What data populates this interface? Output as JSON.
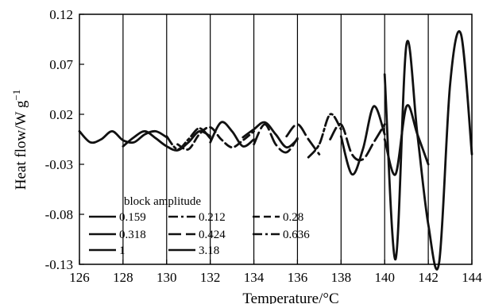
{
  "chart_data": {
    "type": "line",
    "xlabel": "Temperature/°C",
    "ylabel": "Heat flow/W g",
    "ylabel_sup": "−1",
    "xlim": [
      126,
      144
    ],
    "ylim": [
      -0.13,
      0.12
    ],
    "xticks": [
      "126",
      "128",
      "130",
      "132",
      "134",
      "136",
      "138",
      "140",
      "142",
      "144"
    ],
    "yticks": [
      "0.12",
      "0.07",
      "0.02",
      "-0.03",
      "-0.08",
      "-0.13"
    ],
    "vertical_lines": [
      128,
      130,
      132,
      134,
      136,
      138,
      140,
      142
    ],
    "grid": false,
    "legend": {
      "title": "block amplitude",
      "position": "bottom-left",
      "entries": [
        {
          "label": "0.159",
          "style": "solid"
        },
        {
          "label": "0.212",
          "style": "dashdot"
        },
        {
          "label": "0.28",
          "style": "dashed"
        },
        {
          "label": "0.318",
          "style": "solid"
        },
        {
          "label": "0.424",
          "style": "longdash"
        },
        {
          "label": "0.636",
          "style": "dashdot"
        },
        {
          "label": "1",
          "style": "solid"
        },
        {
          "label": "3.18",
          "style": "solid"
        }
      ]
    },
    "series": [
      {
        "style": "solid",
        "x": [
          126.0,
          126.5,
          127.0,
          127.5,
          128.0,
          128.5,
          129.0,
          129.5,
          130.0
        ],
        "y": [
          0.003,
          -0.008,
          -0.005,
          0.003,
          -0.006,
          -0.008,
          0.0,
          0.003,
          -0.003
        ]
      },
      {
        "style": "solid",
        "x": [
          128.0,
          128.5,
          129.0,
          129.5,
          130.0,
          130.5,
          131.0,
          131.5,
          132.0
        ],
        "y": [
          -0.012,
          -0.003,
          0.003,
          -0.004,
          -0.012,
          -0.016,
          -0.008,
          0.003,
          -0.002
        ]
      },
      {
        "style": "dashdot",
        "x": [
          130.0,
          130.5,
          131.0,
          131.5,
          132.0
        ],
        "y": [
          -0.002,
          -0.015,
          -0.005,
          0.006,
          -0.004
        ]
      },
      {
        "style": "dashed",
        "x": [
          130.5,
          131.0,
          131.5,
          132.0,
          132.5,
          133.0,
          133.5,
          134.0
        ],
        "y": [
          -0.01,
          -0.015,
          0.0,
          0.007,
          -0.005,
          -0.013,
          -0.006,
          0.003
        ]
      },
      {
        "style": "solid",
        "x": [
          132.0,
          132.5,
          133.0,
          133.5,
          134.0
        ],
        "y": [
          -0.008,
          0.012,
          0.003,
          -0.012,
          -0.005
        ]
      },
      {
        "style": "longdash",
        "x": [
          134.0,
          134.5,
          135.0,
          135.5,
          136.0
        ],
        "y": [
          -0.01,
          0.01,
          -0.01,
          -0.018,
          -0.004
        ]
      },
      {
        "style": "solid",
        "x": [
          133.5,
          134.0,
          134.5,
          135.0,
          135.5,
          136.0
        ],
        "y": [
          -0.003,
          0.005,
          0.012,
          0.0,
          -0.013,
          -0.005
        ]
      },
      {
        "style": "longdash",
        "x": [
          135.5,
          136.0,
          136.5,
          137.0
        ],
        "y": [
          -0.002,
          0.01,
          -0.005,
          -0.02
        ]
      },
      {
        "style": "dashdot",
        "x": [
          136.5,
          137.0,
          137.5,
          138.0
        ],
        "y": [
          -0.023,
          -0.01,
          0.02,
          0.005
        ]
      },
      {
        "style": "longdash",
        "x": [
          137.5,
          138.0,
          138.5,
          139.0,
          139.5,
          140.0
        ],
        "y": [
          -0.005,
          0.01,
          -0.02,
          -0.025,
          -0.008,
          0.01
        ]
      },
      {
        "style": "solid",
        "x": [
          138.0,
          138.5,
          139.0,
          139.5,
          140.0
        ],
        "y": [
          -0.002,
          -0.04,
          -0.015,
          0.028,
          0.0
        ]
      },
      {
        "style": "solid",
        "x": [
          140.0,
          140.5,
          141.0,
          141.5,
          142.0
        ],
        "y": [
          -0.005,
          -0.04,
          0.028,
          0.0,
          -0.03
        ]
      },
      {
        "style": "solid",
        "x": [
          140.0,
          140.5,
          141.0,
          141.5,
          142.0,
          142.5,
          143.0,
          143.5,
          144.0
        ],
        "y": [
          0.06,
          -0.125,
          0.09,
          0.0,
          -0.09,
          -0.128,
          0.05,
          0.1,
          -0.02
        ]
      }
    ]
  }
}
